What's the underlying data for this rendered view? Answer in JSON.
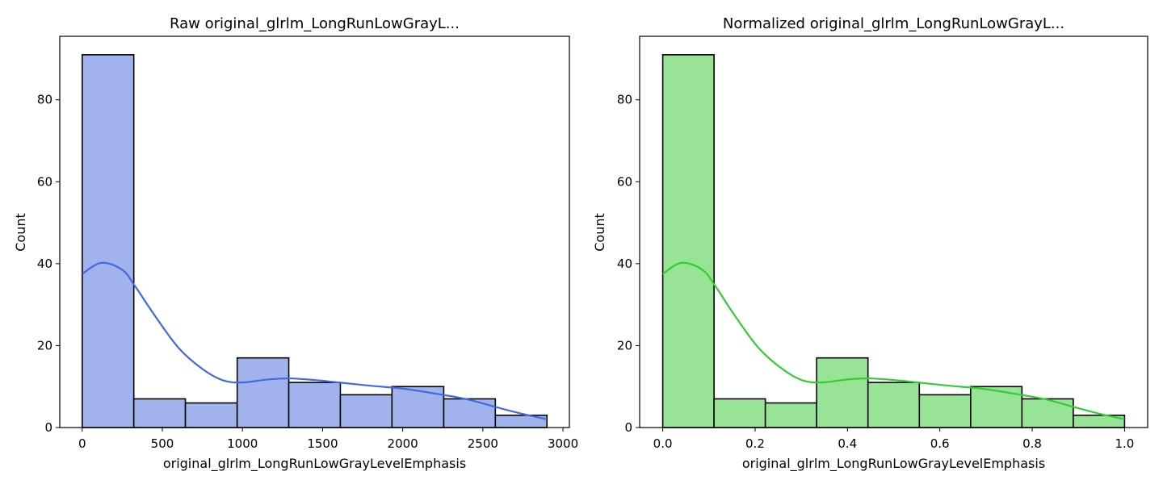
{
  "chart_data": [
    {
      "type": "bar",
      "title": "Raw original_glrlm_LongRunLowGrayL...",
      "xlabel": "original_glrlm_LongRunLowGrayLevelEmphasis",
      "ylabel": "Count",
      "xlim": [
        -140,
        3040
      ],
      "ylim": [
        0,
        95.5
      ],
      "xticks": [
        0,
        500,
        1000,
        1500,
        2000,
        2500,
        3000
      ],
      "yticks": [
        0,
        20,
        40,
        60,
        80
      ],
      "bin_edges": [
        0,
        322,
        644,
        967,
        1289,
        1611,
        1933,
        2256,
        2578,
        2900
      ],
      "values": [
        91,
        7,
        6,
        17,
        11,
        8,
        10,
        7,
        3
      ],
      "kde": {
        "x": [
          0,
          120,
          250,
          330,
          450,
          600,
          750,
          880,
          1000,
          1150,
          1290,
          1450,
          1600,
          1800,
          2000,
          2200,
          2400,
          2600,
          2750,
          2900
        ],
        "y": [
          37.5,
          40.2,
          38.5,
          34.5,
          27.5,
          19.5,
          14.3,
          11.5,
          11.0,
          11.7,
          12.0,
          11.6,
          11.0,
          10.2,
          9.5,
          8.3,
          6.9,
          4.8,
          3.3,
          2.0
        ]
      },
      "colors": {
        "fill": "#a1b3ed",
        "line": "#4169e1",
        "edge": "#000000"
      }
    },
    {
      "type": "bar",
      "title": "Normalized original_glrlm_LongRunLowGrayL...",
      "xlabel": "original_glrlm_LongRunLowGrayLevelEmphasis",
      "ylabel": "Count",
      "xlim": [
        -0.05,
        1.05
      ],
      "ylim": [
        0,
        95.5
      ],
      "xticks": [
        0.0,
        0.2,
        0.4,
        0.6,
        0.8,
        1.0
      ],
      "xticklabels": [
        "0.0",
        "0.2",
        "0.4",
        "0.6",
        "0.8",
        "1.0"
      ],
      "yticks": [
        0,
        20,
        40,
        60,
        80
      ],
      "bin_edges": [
        0,
        0.1111,
        0.2222,
        0.3333,
        0.4444,
        0.5556,
        0.6667,
        0.7778,
        0.8889,
        1.0
      ],
      "values": [
        91,
        7,
        6,
        17,
        11,
        8,
        10,
        7,
        3
      ],
      "kde": {
        "x": [
          0,
          0.041,
          0.086,
          0.114,
          0.155,
          0.207,
          0.259,
          0.303,
          0.345,
          0.397,
          0.445,
          0.5,
          0.552,
          0.621,
          0.69,
          0.759,
          0.828,
          0.897,
          0.948,
          1.0
        ],
        "y": [
          37.5,
          40.2,
          38.5,
          34.5,
          27.5,
          19.5,
          14.3,
          11.5,
          11.0,
          11.7,
          12.0,
          11.6,
          11.0,
          10.2,
          9.5,
          8.3,
          6.9,
          4.8,
          3.3,
          2.0
        ]
      },
      "colors": {
        "fill": "#98e497",
        "line": "#32cd32",
        "edge": "#000000"
      }
    }
  ]
}
